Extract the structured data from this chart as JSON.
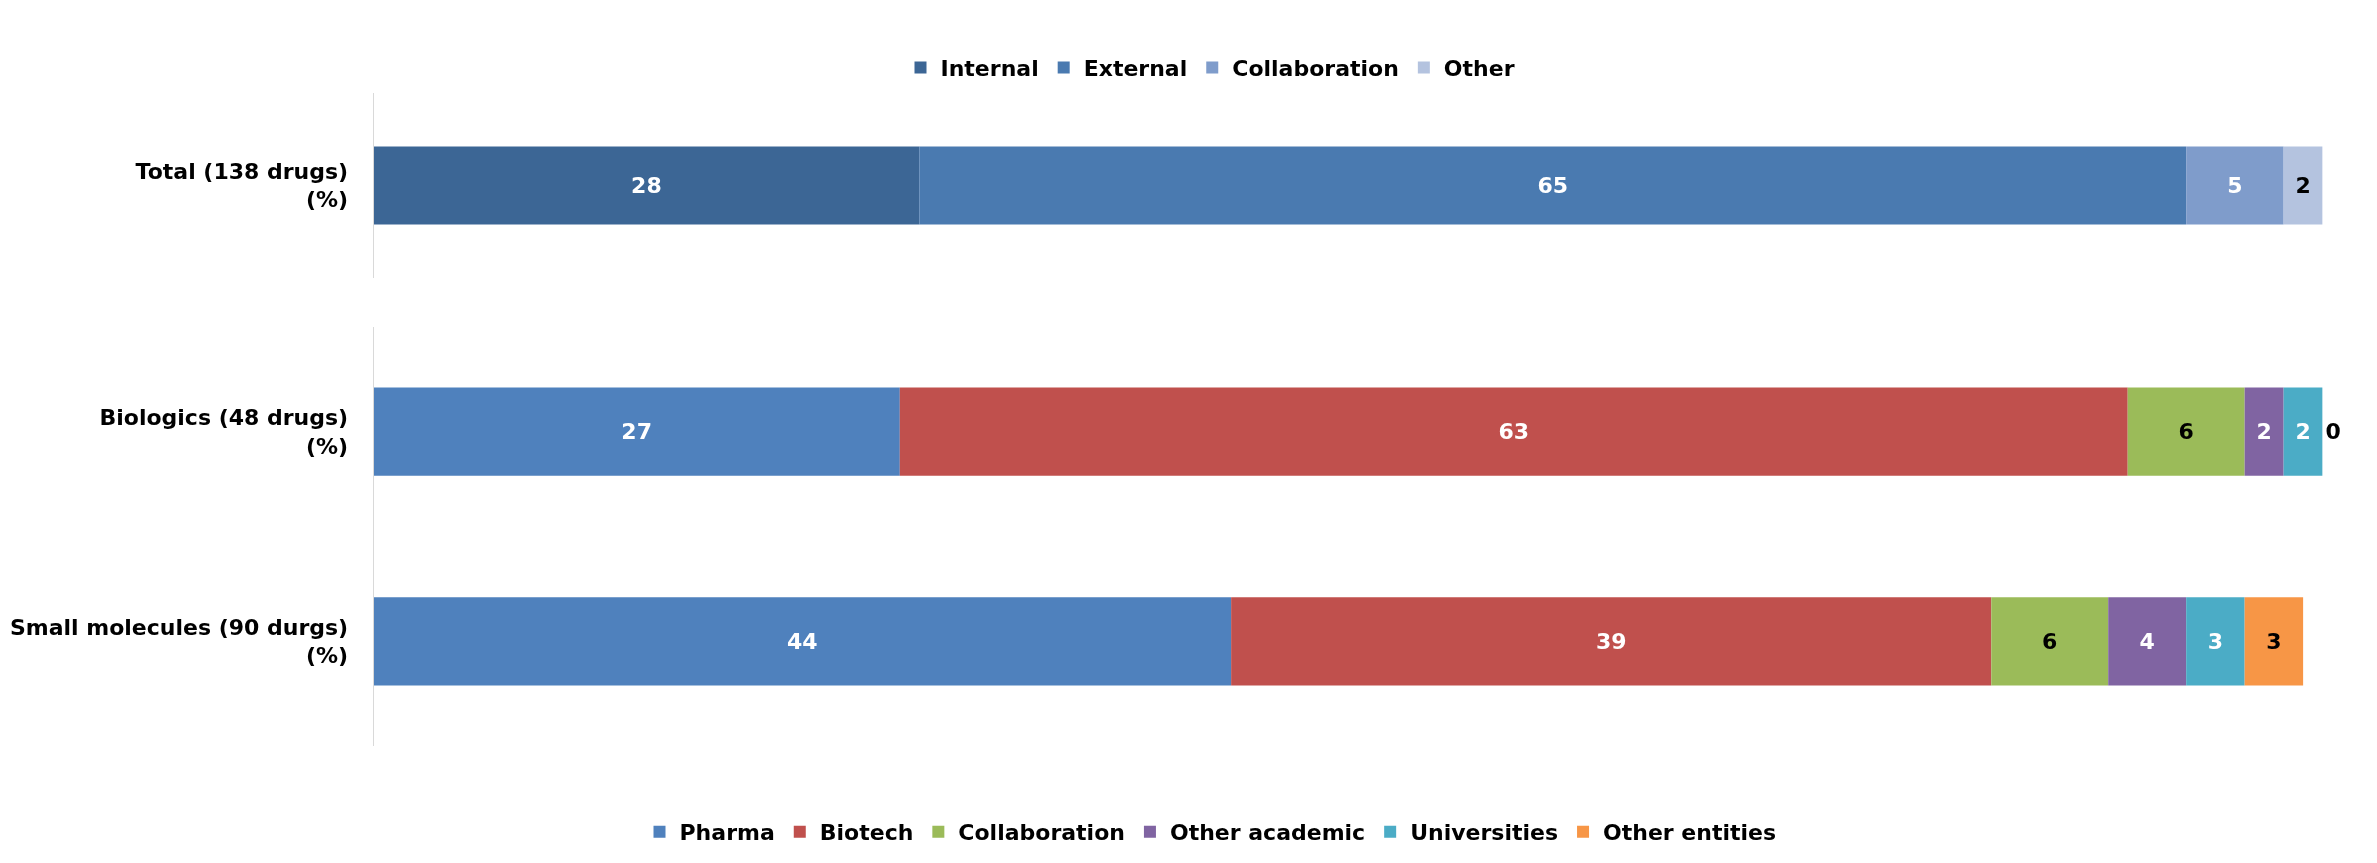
{
  "chart_data": [
    {
      "type": "bar",
      "orientation": "horizontal",
      "stacked": true,
      "categories": [
        "Total (138 drugs)\n(%)"
      ],
      "xlim": [
        0,
        100
      ],
      "tick_labels": "y",
      "data_labels": true,
      "legend": "top",
      "series": [
        {
          "name": "Internal",
          "color": "#3c6695",
          "values": [
            28
          ]
        },
        {
          "name": "External",
          "color": "#4a7ab0",
          "values": [
            65
          ]
        },
        {
          "name": "Collaboration",
          "color": "#7f9ccb",
          "values": [
            5
          ]
        },
        {
          "name": "Other",
          "color": "#b4c3df",
          "values": [
            2
          ]
        }
      ]
    },
    {
      "type": "bar",
      "orientation": "horizontal",
      "stacked": true,
      "categories": [
        "Biologics (48 drugs)\n(%)",
        "Small molecules (90 durgs)\n(%)"
      ],
      "xlim": [
        0,
        100
      ],
      "tick_labels": "y",
      "data_labels": true,
      "legend": "bottom",
      "series": [
        {
          "name": "Pharma",
          "color": "#4f81bd",
          "values": [
            27,
            44
          ]
        },
        {
          "name": "Biotech",
          "color": "#c0504d",
          "values": [
            63,
            39
          ]
        },
        {
          "name": "Collaboration",
          "color": "#9bbb59",
          "values": [
            6,
            6
          ]
        },
        {
          "name": "Other academic",
          "color": "#8064a2",
          "values": [
            2,
            4
          ]
        },
        {
          "name": "Universities",
          "color": "#4bacc6",
          "values": [
            2,
            3
          ]
        },
        {
          "name": "Other entities",
          "color": "#f79646",
          "values": [
            0,
            3
          ]
        }
      ]
    }
  ]
}
